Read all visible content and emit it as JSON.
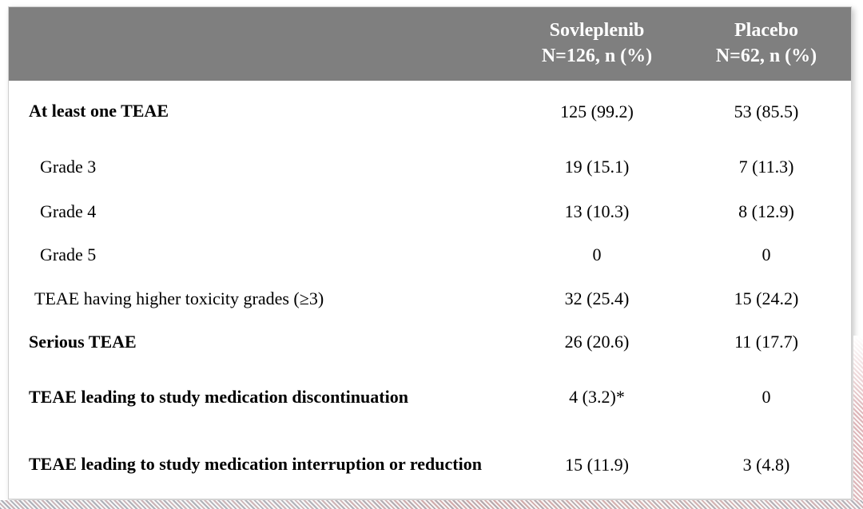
{
  "colors": {
    "header_bg": "#7f7f7f",
    "header_text": "#ffffff",
    "body_text": "#000000",
    "card_border": "#cfcfcf",
    "stripe_gray": "#9498a2",
    "stripe_pink": "#cd969b"
  },
  "table": {
    "columns": {
      "sovleplenib": {
        "line1": "Sovleplenib",
        "line2": "N=126, n (%)"
      },
      "placebo": {
        "line1": "Placebo",
        "line2": "N=62, n (%)"
      }
    },
    "rows": [
      {
        "label": "At least one TEAE",
        "sovleplenib": "125 (99.2)",
        "placebo": "53 (85.5)"
      },
      {
        "label": "Grade 3",
        "sovleplenib": "19 (15.1)",
        "placebo": "7 (11.3)"
      },
      {
        "label": "Grade 4",
        "sovleplenib": "13 (10.3)",
        "placebo": "8 (12.9)"
      },
      {
        "label": "Grade 5",
        "sovleplenib": "0",
        "placebo": "0"
      },
      {
        "label": "TEAE having higher toxicity grades (≥3)",
        "sovleplenib": "32 (25.4)",
        "placebo": "15 (24.2)"
      },
      {
        "label": "Serious TEAE",
        "sovleplenib": "26 (20.6)",
        "placebo": "11 (17.7)"
      },
      {
        "label": "TEAE leading to study medication discontinuation",
        "sovleplenib": "4 (3.2)*",
        "placebo": "0"
      },
      {
        "label": "TEAE leading to study medication interruption or reduction",
        "sovleplenib": "15 (11.9)",
        "placebo": "3 (4.8)"
      }
    ]
  }
}
